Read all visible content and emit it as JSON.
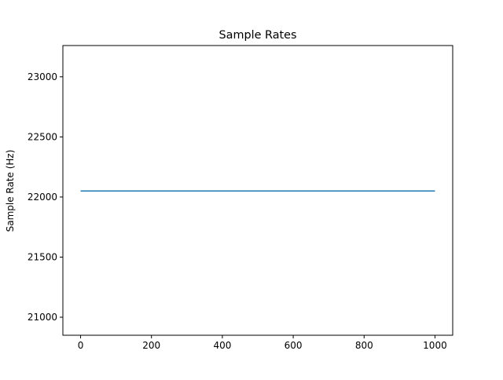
{
  "chart_data": {
    "type": "line",
    "title": "Sample Rates",
    "xlabel": "",
    "ylabel": "Sample Rate (Hz)",
    "xlim": [
      -50,
      1050
    ],
    "ylim": [
      20850,
      23260
    ],
    "x_ticks": [
      0,
      200,
      400,
      600,
      800,
      1000
    ],
    "y_ticks": [
      21000,
      21500,
      22000,
      22500,
      23000
    ],
    "grid": false,
    "legend": "none",
    "series": [
      {
        "color": "#1f77b4",
        "x": [
          0,
          1000
        ],
        "y": [
          22050,
          22050
        ]
      }
    ]
  }
}
